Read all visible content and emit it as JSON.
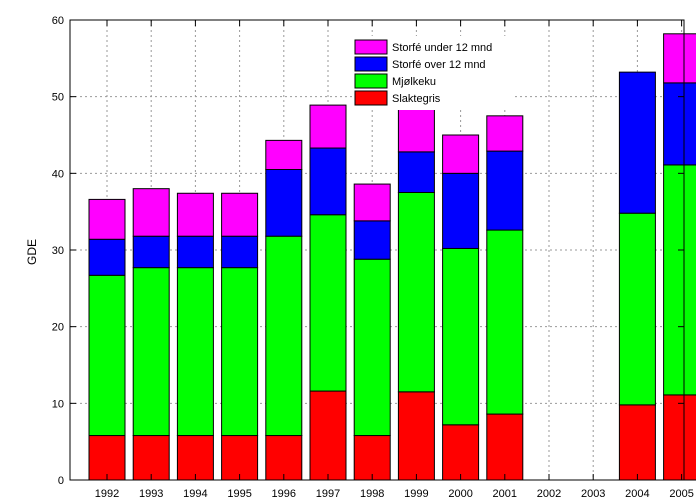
{
  "chart_data": {
    "type": "bar",
    "stacked": true,
    "title": "",
    "xlabel": "",
    "ylabel": "GDE",
    "ylim": [
      0,
      60
    ],
    "yticks": [
      0,
      10,
      20,
      30,
      40,
      50,
      60
    ],
    "grid": true,
    "legend_position": "top-center",
    "categories": [
      "1992",
      "1993",
      "1994",
      "1995",
      "1996",
      "1997",
      "1998",
      "1999",
      "2000",
      "2001",
      "2002",
      "2003",
      "2004",
      "2005"
    ],
    "series": [
      {
        "name": "Slaktegris",
        "color": "#ff0000",
        "values": [
          5.8,
          5.8,
          5.8,
          5.8,
          5.8,
          11.6,
          5.8,
          11.5,
          7.2,
          8.6,
          null,
          null,
          9.8,
          11.1
        ]
      },
      {
        "name": "Mjølkeku",
        "color": "#00ff00",
        "values": [
          20.9,
          21.9,
          21.9,
          21.9,
          26.0,
          23.0,
          23.0,
          26.0,
          23.0,
          24.0,
          null,
          null,
          25.0,
          30.0
        ]
      },
      {
        "name": "Storfé over 12 mnd",
        "color": "#0000ff",
        "values": [
          4.7,
          4.1,
          4.1,
          4.1,
          8.7,
          8.7,
          5.0,
          5.3,
          9.8,
          10.3,
          null,
          null,
          18.4,
          10.7
        ]
      },
      {
        "name": "Storfé under 12 mnd",
        "color": "#ff00ff",
        "values": [
          5.2,
          6.2,
          5.6,
          5.6,
          3.8,
          5.6,
          4.8,
          5.6,
          5.0,
          4.6,
          null,
          null,
          null,
          6.4
        ]
      }
    ],
    "legend_order": [
      "Storfé under 12 mnd",
      "Storfé over 12 mnd",
      "Mjølkeku",
      "Slaktegris"
    ]
  }
}
